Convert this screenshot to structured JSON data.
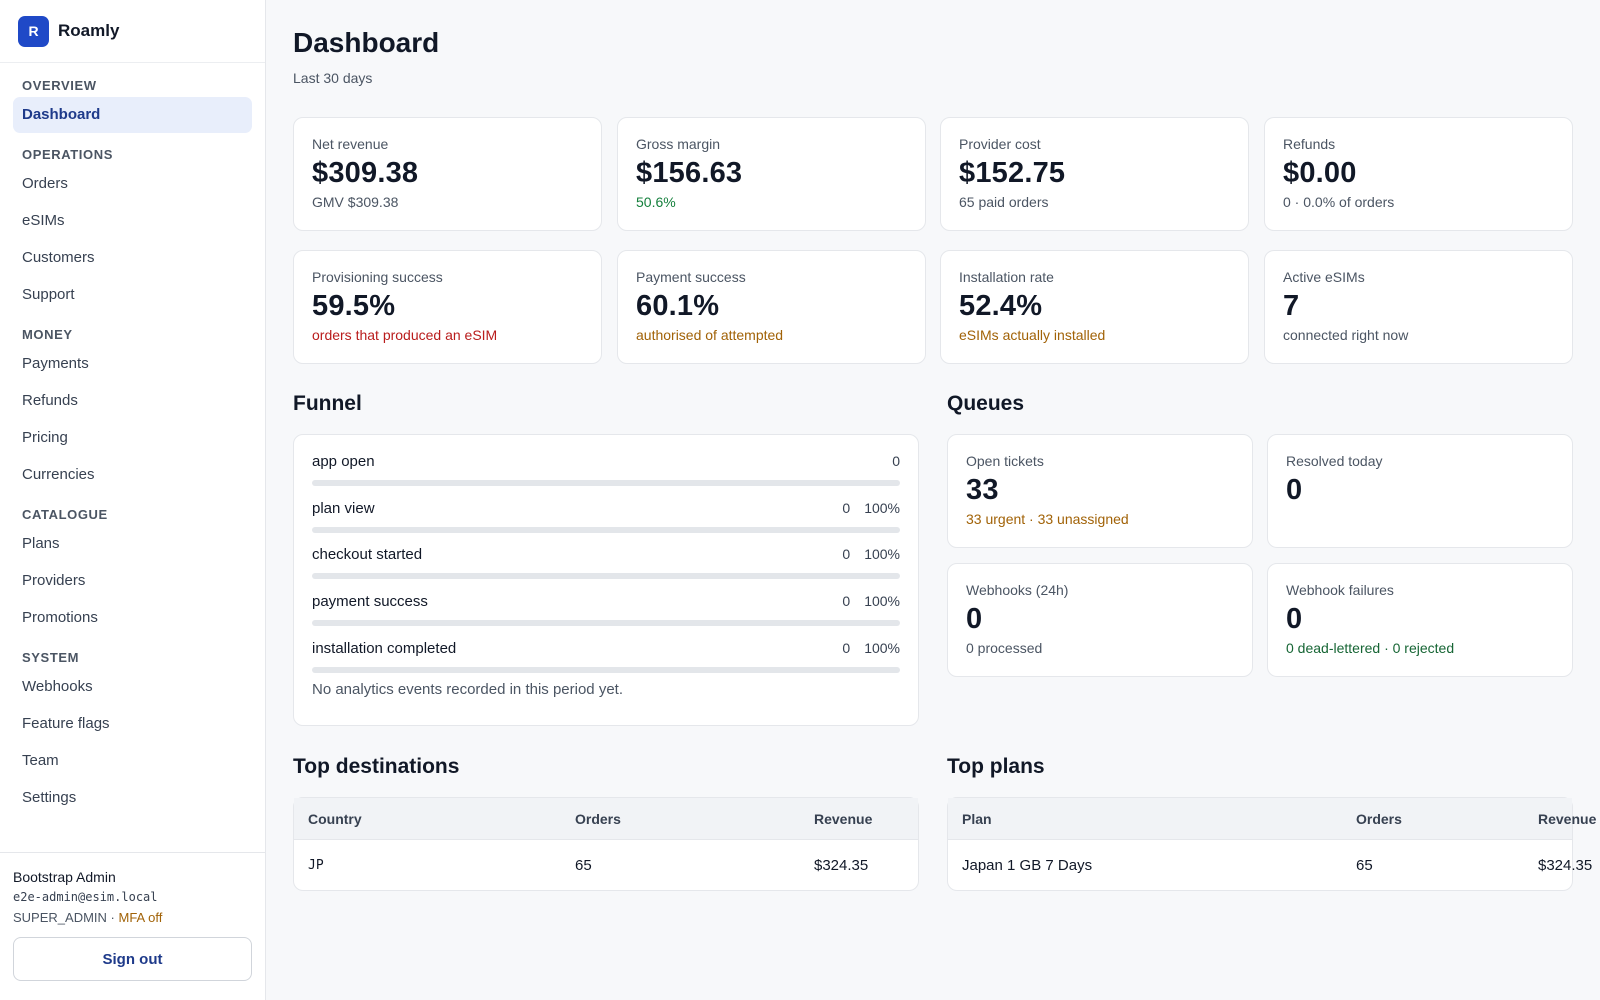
{
  "brand": {
    "logo_letter": "R",
    "name": "Roamly"
  },
  "sidebar": {
    "sections": [
      {
        "title": "OVERVIEW",
        "items": [
          "Dashboard"
        ]
      },
      {
        "title": "OPERATIONS",
        "items": [
          "Orders",
          "eSIMs",
          "Customers",
          "Support"
        ]
      },
      {
        "title": "MONEY",
        "items": [
          "Payments",
          "Refunds",
          "Pricing",
          "Currencies"
        ]
      },
      {
        "title": "CATALOGUE",
        "items": [
          "Plans",
          "Providers",
          "Promotions"
        ]
      },
      {
        "title": "SYSTEM",
        "items": [
          "Webhooks",
          "Feature flags",
          "Team",
          "Settings"
        ]
      }
    ],
    "active_item": "Dashboard"
  },
  "user": {
    "name": "Bootstrap Admin",
    "email": "e2e-admin@esim.local",
    "role": "SUPER_ADMIN",
    "separator": " · ",
    "mfa": "MFA off",
    "signout_label": "Sign out"
  },
  "header": {
    "title": "Dashboard",
    "subtitle": "Last 30 days"
  },
  "kpis": [
    {
      "label": "Net revenue",
      "value": "$309.38",
      "sub": "GMV $309.38",
      "sub_color": "gray"
    },
    {
      "label": "Gross margin",
      "value": "$156.63",
      "sub": "50.6%",
      "sub_color": "green"
    },
    {
      "label": "Provider cost",
      "value": "$152.75",
      "sub": "65 paid orders",
      "sub_color": "gray"
    },
    {
      "label": "Refunds",
      "value": "$0.00",
      "sub": "0 · 0.0% of orders",
      "sub_color": "gray"
    },
    {
      "label": "Provisioning success",
      "value": "59.5%",
      "sub": "orders that produced an eSIM",
      "sub_color": "red"
    },
    {
      "label": "Payment success",
      "value": "60.1%",
      "sub": "authorised of attempted",
      "sub_color": "amber"
    },
    {
      "label": "Installation rate",
      "value": "52.4%",
      "sub": "eSIMs actually installed",
      "sub_color": "amber"
    },
    {
      "label": "Active eSIMs",
      "value": "7",
      "sub": "connected right now",
      "sub_color": "gray"
    }
  ],
  "funnel": {
    "title": "Funnel",
    "steps": [
      {
        "label": "app open",
        "count": "0",
        "pct": "",
        "fill": 0
      },
      {
        "label": "plan view",
        "count": "0",
        "pct": "100%",
        "fill": 0
      },
      {
        "label": "checkout started",
        "count": "0",
        "pct": "100%",
        "fill": 0
      },
      {
        "label": "payment success",
        "count": "0",
        "pct": "100%",
        "fill": 0
      },
      {
        "label": "installation completed",
        "count": "0",
        "pct": "100%",
        "fill": 0
      }
    ],
    "empty_message": "No analytics events recorded in this period yet."
  },
  "queues": {
    "title": "Queues",
    "cards": [
      {
        "label": "Open tickets",
        "value": "33",
        "sub": "33 urgent · 33 unassigned",
        "sub_color": "amber"
      },
      {
        "label": "Resolved today",
        "value": "0",
        "sub": "",
        "sub_color": "gray"
      },
      {
        "label": "Webhooks (24h)",
        "value": "0",
        "sub": "0 processed",
        "sub_color": "gray"
      },
      {
        "label": "Webhook failures",
        "value": "0",
        "sub": "0 dead-lettered · 0 rejected",
        "sub_color": "darkgreen"
      }
    ]
  },
  "top_destinations": {
    "title": "Top destinations",
    "columns": [
      "Country",
      "Orders",
      "Revenue"
    ],
    "rows": [
      [
        "JP",
        "65",
        "$324.35"
      ]
    ]
  },
  "top_plans": {
    "title": "Top plans",
    "columns": [
      "Plan",
      "Orders",
      "Revenue"
    ],
    "rows": [
      [
        "Japan 1 GB 7 Days",
        "65",
        "$324.35"
      ]
    ]
  },
  "colors": {
    "accent": "#1f49c7",
    "active_nav_bg": "#e8eefb",
    "green": "#15803d",
    "red": "#b91c1c",
    "amber": "#a16207"
  }
}
